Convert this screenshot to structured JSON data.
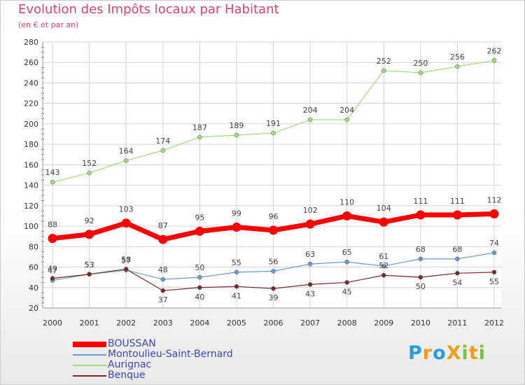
{
  "header": {
    "title": "Evolution des Impôts locaux par Habitant",
    "subtitle": "(en € et par an)"
  },
  "logo": {
    "text": "ProXiti",
    "letters": [
      {
        "ch": "P",
        "color": "#2e9be0"
      },
      {
        "ch": "r",
        "color": "#f29a1f"
      },
      {
        "ch": "o",
        "color": "#2e9be0"
      },
      {
        "ch": "X",
        "color": "#e8a21a"
      },
      {
        "ch": "i",
        "color": "#7cc242"
      },
      {
        "ch": "t",
        "color": "#f29a1f"
      },
      {
        "ch": "i",
        "color": "#7cc242"
      }
    ]
  },
  "chart_data": {
    "type": "line",
    "title": "Evolution des Impôts locaux par Habitant",
    "subtitle": "(en € et par an)",
    "xlabel": "",
    "ylabel": "",
    "x": [
      "2000",
      "2001",
      "2002",
      "2003",
      "2004",
      "2005",
      "2006",
      "2007",
      "2008",
      "2009",
      "2010",
      "2011",
      "2012"
    ],
    "ylim": [
      20,
      280
    ],
    "yticks": [
      20,
      40,
      60,
      80,
      100,
      120,
      140,
      160,
      180,
      200,
      220,
      240,
      260,
      280
    ],
    "grid": true,
    "legend_position": "bottom-left",
    "series": [
      {
        "name": "BOUSSAN",
        "color": "#ff0000",
        "values": [
          88,
          92,
          103,
          87,
          95,
          99,
          96,
          102,
          110,
          104,
          111,
          111,
          112
        ]
      },
      {
        "name": "Montoulieu-Saint-Bernard",
        "color": "#6a9ad0",
        "values": [
          47,
          53,
          57,
          48,
          50,
          55,
          56,
          63,
          65,
          61,
          68,
          68,
          74
        ]
      },
      {
        "name": "Aurignac",
        "color": "#a0dd7a",
        "values": [
          143,
          152,
          164,
          174,
          187,
          189,
          191,
          204,
          204,
          252,
          250,
          256,
          262
        ]
      },
      {
        "name": "Benque",
        "color": "#7a2a2a",
        "values": [
          49,
          53,
          58,
          37,
          40,
          41,
          39,
          43,
          45,
          52,
          50,
          54,
          55
        ]
      }
    ]
  }
}
